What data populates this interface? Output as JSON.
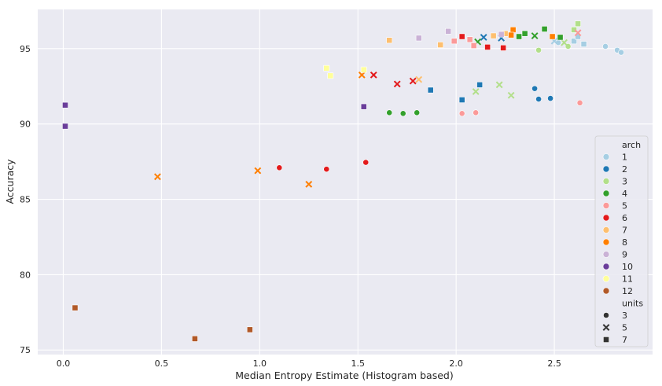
{
  "chart_data": {
    "type": "scatter",
    "xlabel": "Median Entropy Estimate (Histogram based)",
    "ylabel": "Accuracy",
    "xlim": [
      -0.13,
      3.0
    ],
    "ylim": [
      74.7,
      97.6
    ],
    "xticks": [
      "0.0",
      "0.5",
      "1.0",
      "1.5",
      "2.0",
      "2.5"
    ],
    "xtick_values": [
      0,
      0.5,
      1.0,
      1.5,
      2.0,
      2.5
    ],
    "yticks": [
      "75",
      "80",
      "85",
      "90",
      "95"
    ],
    "ytick_values": [
      75,
      80,
      85,
      90,
      95
    ],
    "grid": true,
    "legend_position": "right",
    "legend": {
      "hue_title": "arch",
      "hue_entries": [
        {
          "label": "1",
          "color": "#a6cee3"
        },
        {
          "label": "2",
          "color": "#1f78b4"
        },
        {
          "label": "3",
          "color": "#b2df8a"
        },
        {
          "label": "4",
          "color": "#33a02c"
        },
        {
          "label": "5",
          "color": "#fb9a99"
        },
        {
          "label": "6",
          "color": "#e31a1c"
        },
        {
          "label": "7",
          "color": "#fdbf6f"
        },
        {
          "label": "8",
          "color": "#ff7f00"
        },
        {
          "label": "9",
          "color": "#cab2d6"
        },
        {
          "label": "10",
          "color": "#6a3d9a"
        },
        {
          "label": "11",
          "color": "#ffff99"
        },
        {
          "label": "12",
          "color": "#b15928"
        }
      ],
      "style_title": "units",
      "style_entries": [
        {
          "label": "3",
          "marker": "circle"
        },
        {
          "label": "5",
          "marker": "x"
        },
        {
          "label": "7",
          "marker": "square"
        }
      ]
    },
    "series": [
      {
        "arch": "1",
        "points": [
          {
            "x": 2.76,
            "y": 95.15,
            "m": "circle"
          },
          {
            "x": 2.82,
            "y": 94.9,
            "m": "circle"
          },
          {
            "x": 2.84,
            "y": 94.75,
            "m": "circle"
          },
          {
            "x": 2.52,
            "y": 95.4,
            "m": "circle"
          },
          {
            "x": 2.5,
            "y": 95.5,
            "m": "x"
          },
          {
            "x": 2.65,
            "y": 95.3,
            "m": "square"
          },
          {
            "x": 2.6,
            "y": 95.5,
            "m": "square"
          },
          {
            "x": 2.62,
            "y": 95.8,
            "m": "square"
          }
        ]
      },
      {
        "arch": "2",
        "points": [
          {
            "x": 2.4,
            "y": 92.35,
            "m": "circle"
          },
          {
            "x": 2.42,
            "y": 91.65,
            "m": "circle"
          },
          {
            "x": 2.48,
            "y": 91.7,
            "m": "circle"
          },
          {
            "x": 2.14,
            "y": 95.75,
            "m": "x"
          },
          {
            "x": 2.23,
            "y": 95.7,
            "m": "x"
          },
          {
            "x": 1.87,
            "y": 92.25,
            "m": "square"
          },
          {
            "x": 2.03,
            "y": 91.6,
            "m": "square"
          },
          {
            "x": 2.12,
            "y": 92.6,
            "m": "square"
          }
        ]
      },
      {
        "arch": "3",
        "points": [
          {
            "x": 2.42,
            "y": 94.9,
            "m": "circle"
          },
          {
            "x": 2.57,
            "y": 95.15,
            "m": "circle"
          },
          {
            "x": 2.1,
            "y": 92.15,
            "m": "x"
          },
          {
            "x": 2.22,
            "y": 92.6,
            "m": "x"
          },
          {
            "x": 2.28,
            "y": 91.9,
            "m": "x"
          },
          {
            "x": 2.55,
            "y": 95.4,
            "m": "x"
          },
          {
            "x": 2.62,
            "y": 96.65,
            "m": "square"
          },
          {
            "x": 2.6,
            "y": 96.25,
            "m": "square"
          }
        ]
      },
      {
        "arch": "4",
        "points": [
          {
            "x": 1.66,
            "y": 90.75,
            "m": "circle"
          },
          {
            "x": 1.73,
            "y": 90.7,
            "m": "circle"
          },
          {
            "x": 1.8,
            "y": 90.75,
            "m": "circle"
          },
          {
            "x": 2.11,
            "y": 95.45,
            "m": "x"
          },
          {
            "x": 2.4,
            "y": 95.85,
            "m": "x"
          },
          {
            "x": 2.32,
            "y": 95.8,
            "m": "square"
          },
          {
            "x": 2.45,
            "y": 96.3,
            "m": "square"
          },
          {
            "x": 2.53,
            "y": 95.75,
            "m": "square"
          },
          {
            "x": 2.35,
            "y": 96.0,
            "m": "square"
          }
        ]
      },
      {
        "arch": "5",
        "points": [
          {
            "x": 2.03,
            "y": 90.7,
            "m": "circle"
          },
          {
            "x": 2.1,
            "y": 90.75,
            "m": "circle"
          },
          {
            "x": 2.63,
            "y": 91.4,
            "m": "circle"
          },
          {
            "x": 2.62,
            "y": 96.05,
            "m": "x"
          },
          {
            "x": 1.99,
            "y": 95.5,
            "m": "square"
          },
          {
            "x": 2.07,
            "y": 95.6,
            "m": "square"
          },
          {
            "x": 2.09,
            "y": 95.2,
            "m": "square"
          }
        ]
      },
      {
        "arch": "6",
        "points": [
          {
            "x": 1.1,
            "y": 87.1,
            "m": "circle"
          },
          {
            "x": 1.34,
            "y": 87.0,
            "m": "circle"
          },
          {
            "x": 1.54,
            "y": 87.45,
            "m": "circle"
          },
          {
            "x": 1.58,
            "y": 93.25,
            "m": "x"
          },
          {
            "x": 1.7,
            "y": 92.65,
            "m": "x"
          },
          {
            "x": 1.78,
            "y": 92.85,
            "m": "x"
          },
          {
            "x": 2.03,
            "y": 95.8,
            "m": "square"
          },
          {
            "x": 2.16,
            "y": 95.1,
            "m": "square"
          },
          {
            "x": 2.24,
            "y": 95.05,
            "m": "square"
          }
        ]
      },
      {
        "arch": "7",
        "points": [
          {
            "x": 1.81,
            "y": 92.95,
            "m": "x"
          },
          {
            "x": 1.66,
            "y": 95.55,
            "m": "square"
          },
          {
            "x": 1.92,
            "y": 95.25,
            "m": "square"
          },
          {
            "x": 2.19,
            "y": 95.85,
            "m": "square"
          },
          {
            "x": 2.25,
            "y": 96.0,
            "m": "square"
          }
        ]
      },
      {
        "arch": "8",
        "points": [
          {
            "x": 0.48,
            "y": 86.5,
            "m": "x"
          },
          {
            "x": 0.99,
            "y": 86.9,
            "m": "x"
          },
          {
            "x": 1.25,
            "y": 86.0,
            "m": "x"
          },
          {
            "x": 1.52,
            "y": 93.25,
            "m": "x"
          },
          {
            "x": 2.29,
            "y": 96.25,
            "m": "square"
          },
          {
            "x": 2.28,
            "y": 95.9,
            "m": "square"
          },
          {
            "x": 2.49,
            "y": 95.8,
            "m": "square"
          }
        ]
      },
      {
        "arch": "9",
        "points": [
          {
            "x": 1.81,
            "y": 95.7,
            "m": "square"
          },
          {
            "x": 1.96,
            "y": 96.15,
            "m": "square"
          },
          {
            "x": 2.23,
            "y": 95.95,
            "m": "square"
          }
        ]
      },
      {
        "arch": "10",
        "points": [
          {
            "x": 0.01,
            "y": 91.25,
            "m": "square"
          },
          {
            "x": 0.01,
            "y": 89.85,
            "m": "square"
          },
          {
            "x": 1.53,
            "y": 91.15,
            "m": "square"
          }
        ]
      },
      {
        "arch": "11",
        "points": [
          {
            "x": 1.34,
            "y": 93.7,
            "m": "square"
          },
          {
            "x": 1.36,
            "y": 93.2,
            "m": "square"
          },
          {
            "x": 1.53,
            "y": 93.6,
            "m": "square"
          }
        ]
      },
      {
        "arch": "12",
        "points": [
          {
            "x": 0.06,
            "y": 77.8,
            "m": "square"
          },
          {
            "x": 0.67,
            "y": 75.75,
            "m": "square"
          },
          {
            "x": 0.95,
            "y": 76.35,
            "m": "square"
          }
        ]
      }
    ]
  }
}
